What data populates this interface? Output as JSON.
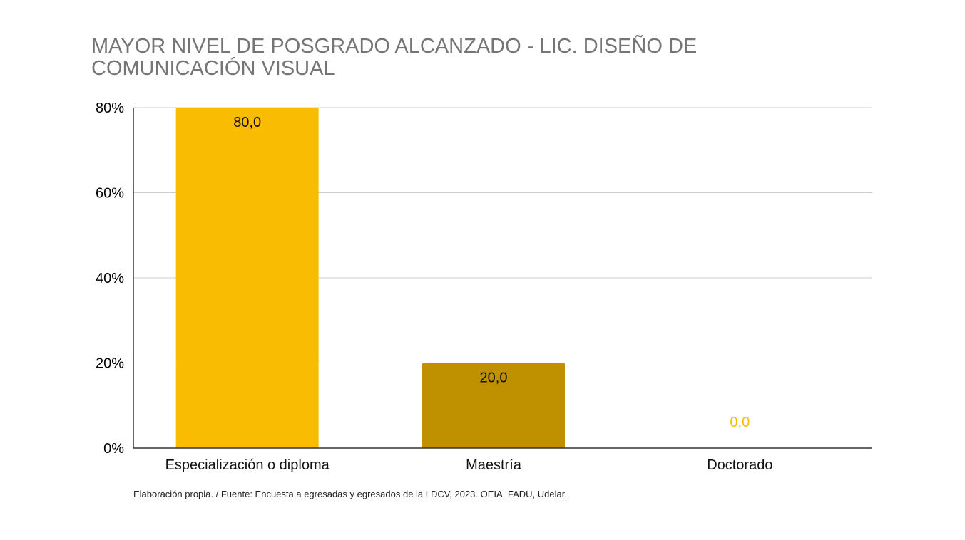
{
  "chart_data": {
    "type": "bar",
    "title": "MAYOR NIVEL DE POSGRADO ALCANZADO - LIC. DISEÑO DE COMUNICACIÓN VISUAL",
    "categories": [
      "Especialización o diploma",
      "Maestría",
      "Doctorado"
    ],
    "values": [
      80.0,
      20.0,
      0.0
    ],
    "data_labels": [
      "80,0",
      "20,0",
      "0,0"
    ],
    "bar_colors": [
      "#F9BC02",
      "#BF9000",
      "#F9BC02"
    ],
    "xlabel": "",
    "ylabel": "",
    "ylim": [
      0,
      80
    ],
    "yticks": [
      0,
      20,
      40,
      60,
      80
    ],
    "ytick_labels": [
      "0%",
      "20%",
      "40%",
      "60%",
      "80%"
    ],
    "grid": true,
    "legend": "none"
  },
  "footer": {
    "source": "Elaboración propia. / Fuente: Encuesta a egresadas y egresados de la LDCV, 2023. OEIA, FADU, Udelar."
  }
}
